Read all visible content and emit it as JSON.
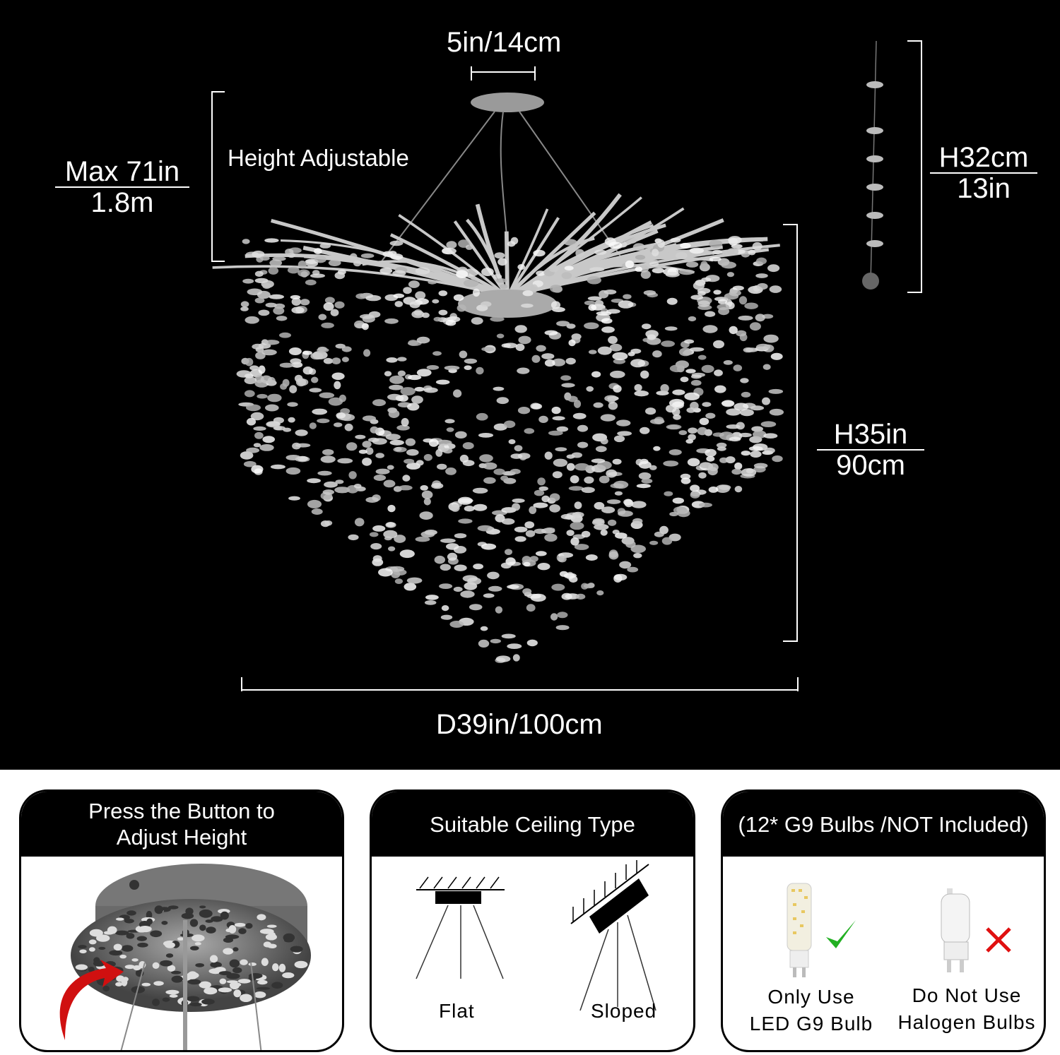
{
  "dimensions": {
    "canopy_width": "5in/14cm",
    "max_height_top": "Max 71in",
    "max_height_bottom": "1.8m",
    "height_adjustable": "Height Adjustable",
    "strand_height_top": "H32cm",
    "strand_height_bottom": "13in",
    "body_height_top": "H35in",
    "body_height_bottom": "90cm",
    "diameter": "D39in/100cm"
  },
  "panels": [
    {
      "title": "Press the Button to Adjust Height"
    },
    {
      "title": "Suitable Ceiling Type",
      "options": [
        "Flat",
        "Sloped"
      ]
    },
    {
      "title": "(12* G9 Bulbs /NOT Included)",
      "good_line1": "Only Use",
      "good_line2": "LED G9 Bulb",
      "bad_line1": "Do Not Use",
      "bad_line2": "Halogen Bulbs"
    }
  ],
  "colors": {
    "background": "#000000",
    "check": "#22b022",
    "cross": "#e01010",
    "arrow": "#d01010"
  },
  "icons": [
    "checkmark-icon",
    "cross-icon",
    "arrow-icon"
  ]
}
